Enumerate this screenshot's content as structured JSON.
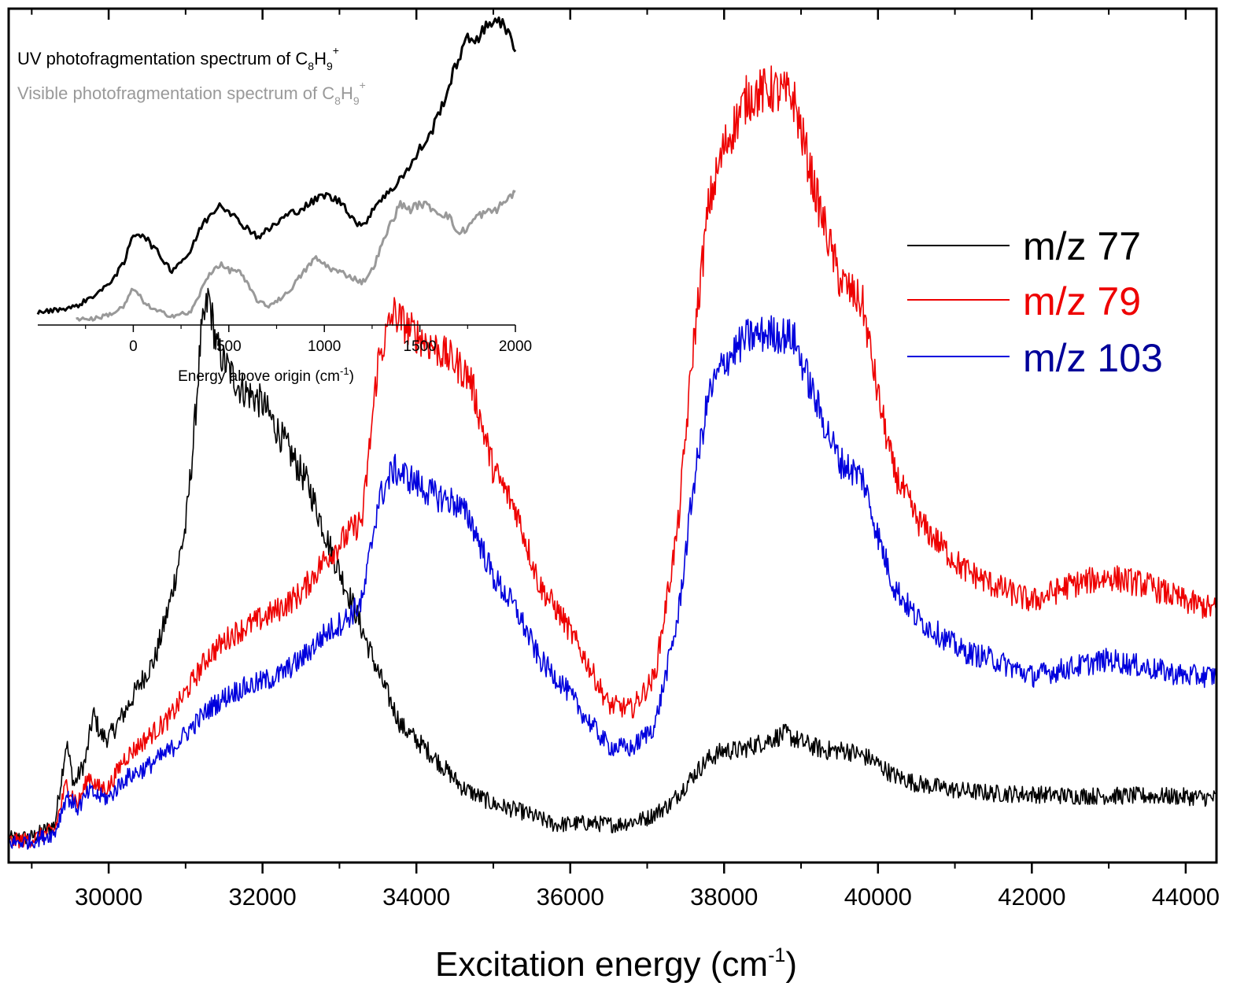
{
  "chart_data": [
    {
      "type": "line",
      "title": "",
      "xlabel": "Excitation energy",
      "xlabel_unit": "(cm",
      "xlabel_unit_sup": "-1",
      "xlabel_unit_close": ")",
      "ylabel": "",
      "xlim": [
        28700,
        44400
      ],
      "ylim": [
        0,
        1
      ],
      "y_ticks_shown": false,
      "grid": false,
      "legend_position": "right",
      "x_tick_labels": [
        "30000",
        "32000",
        "34000",
        "36000",
        "38000",
        "40000",
        "42000",
        "44000"
      ],
      "x_ticks": [
        30000,
        32000,
        34000,
        36000,
        38000,
        40000,
        42000,
        44000
      ],
      "series": [
        {
          "name": "m/z 77",
          "color": "#000000",
          "x": [
            28700,
            29000,
            29300,
            29450,
            29550,
            29700,
            29800,
            29900,
            30000,
            30200,
            30400,
            30600,
            30800,
            31000,
            31100,
            31200,
            31300,
            31400,
            31500,
            31700,
            32000,
            32300,
            32600,
            32900,
            33200,
            33500,
            33800,
            34200,
            34600,
            35000,
            35400,
            35800,
            36200,
            36600,
            37000,
            37300,
            37600,
            37800,
            38000,
            38200,
            38500,
            38800,
            39000,
            39300,
            39600,
            39900,
            40200,
            40500,
            41000,
            41500,
            42000,
            42500,
            43000,
            43500,
            44000,
            44400
          ],
          "y": [
            0.023,
            0.025,
            0.04,
            0.14,
            0.088,
            0.118,
            0.175,
            0.148,
            0.145,
            0.175,
            0.21,
            0.24,
            0.31,
            0.4,
            0.5,
            0.63,
            0.68,
            0.62,
            0.6,
            0.57,
            0.55,
            0.5,
            0.45,
            0.37,
            0.3,
            0.225,
            0.16,
            0.125,
            0.085,
            0.065,
            0.055,
            0.04,
            0.042,
            0.04,
            0.048,
            0.065,
            0.1,
            0.12,
            0.13,
            0.13,
            0.14,
            0.15,
            0.14,
            0.13,
            0.13,
            0.12,
            0.1,
            0.09,
            0.082,
            0.078,
            0.077,
            0.075,
            0.075,
            0.075,
            0.074,
            0.072
          ]
        },
        {
          "name": "m/z 79",
          "color": "#ee0000",
          "x": [
            28700,
            29000,
            29300,
            29450,
            29600,
            29750,
            29850,
            30000,
            30200,
            30500,
            30800,
            31000,
            31300,
            31600,
            31900,
            32200,
            32500,
            32800,
            33100,
            33300,
            33500,
            33700,
            33900,
            34200,
            34500,
            34700,
            35000,
            35300,
            35600,
            35900,
            36200,
            36500,
            36800,
            37100,
            37400,
            37600,
            37800,
            38000,
            38300,
            38600,
            38900,
            39200,
            39500,
            39800,
            40000,
            40200,
            40500,
            40800,
            41100,
            41500,
            42000,
            42500,
            43000,
            43500,
            44000,
            44400
          ],
          "y": [
            0.02,
            0.022,
            0.034,
            0.09,
            0.065,
            0.1,
            0.085,
            0.085,
            0.12,
            0.145,
            0.17,
            0.2,
            0.245,
            0.27,
            0.285,
            0.3,
            0.32,
            0.36,
            0.39,
            0.41,
            0.6,
            0.66,
            0.64,
            0.62,
            0.6,
            0.58,
            0.47,
            0.42,
            0.33,
            0.29,
            0.24,
            0.185,
            0.18,
            0.22,
            0.4,
            0.62,
            0.79,
            0.86,
            0.92,
            0.93,
            0.92,
            0.8,
            0.7,
            0.67,
            0.56,
            0.47,
            0.41,
            0.38,
            0.35,
            0.33,
            0.31,
            0.33,
            0.34,
            0.33,
            0.31,
            0.3
          ]
        },
        {
          "name": "m/z 103",
          "color": "#0000dd",
          "x": [
            28700,
            29000,
            29300,
            29450,
            29600,
            29750,
            29850,
            30000,
            30200,
            30500,
            30800,
            31000,
            31300,
            31600,
            31900,
            32200,
            32500,
            32800,
            33100,
            33300,
            33500,
            33700,
            33900,
            34200,
            34500,
            34700,
            35000,
            35300,
            35600,
            35900,
            36200,
            36500,
            36800,
            37100,
            37400,
            37600,
            37800,
            38000,
            38300,
            38600,
            38900,
            39200,
            39500,
            39800,
            40000,
            40200,
            40500,
            40800,
            41100,
            41500,
            42000,
            42500,
            43000,
            43500,
            44000,
            44400
          ],
          "y": [
            0.018,
            0.02,
            0.03,
            0.075,
            0.06,
            0.08,
            0.075,
            0.072,
            0.095,
            0.11,
            0.13,
            0.15,
            0.18,
            0.2,
            0.21,
            0.22,
            0.24,
            0.27,
            0.29,
            0.31,
            0.43,
            0.47,
            0.46,
            0.44,
            0.43,
            0.41,
            0.34,
            0.3,
            0.24,
            0.21,
            0.17,
            0.135,
            0.132,
            0.16,
            0.29,
            0.45,
            0.56,
            0.6,
            0.63,
            0.635,
            0.63,
            0.55,
            0.48,
            0.46,
            0.39,
            0.33,
            0.29,
            0.27,
            0.25,
            0.24,
            0.22,
            0.23,
            0.24,
            0.23,
            0.22,
            0.22
          ]
        }
      ]
    },
    {
      "type": "line",
      "title": "",
      "xlabel": "Energy above origin",
      "xlabel_unit": "(cm",
      "xlabel_unit_sup": "-1",
      "xlabel_unit_close": ")",
      "xlim": [
        -500,
        2000
      ],
      "ylim": [
        0,
        1
      ],
      "grid": false,
      "legend_position": "top-left",
      "x_tick_labels": [
        "0",
        "500",
        "1000",
        "1500",
        "2000"
      ],
      "x_ticks": [
        0,
        500,
        1000,
        1500,
        2000
      ],
      "series": [
        {
          "name": "UV photofragmentation spectrum of C",
          "name_sub1": "8",
          "name_mid": "H",
          "name_sub2": "9",
          "name_sup": "+",
          "color": "#000000",
          "x": [
            -500,
            -300,
            -150,
            -50,
            0,
            50,
            100,
            200,
            300,
            350,
            400,
            450,
            500,
            550,
            600,
            650,
            700,
            800,
            900,
            1000,
            1100,
            1150,
            1200,
            1250,
            1300,
            1350,
            1400,
            1450,
            1500,
            1550,
            1600,
            1650,
            1700,
            1750,
            1800,
            1850,
            1900,
            1950,
            2000
          ],
          "y": [
            0.02,
            0.04,
            0.1,
            0.18,
            0.28,
            0.28,
            0.24,
            0.16,
            0.22,
            0.3,
            0.34,
            0.38,
            0.36,
            0.32,
            0.3,
            0.27,
            0.29,
            0.34,
            0.37,
            0.41,
            0.38,
            0.33,
            0.3,
            0.36,
            0.4,
            0.42,
            0.47,
            0.5,
            0.56,
            0.6,
            0.68,
            0.76,
            0.86,
            0.92,
            0.93,
            0.96,
            1.0,
            0.95,
            0.9
          ]
        },
        {
          "name": "Visible photofragmentation spectrum of C",
          "name_sub1": "8",
          "name_mid": "H",
          "name_sub2": "9",
          "name_sup": "+",
          "color": "#999999",
          "x": [
            -300,
            -200,
            -100,
            -50,
            0,
            50,
            100,
            200,
            300,
            400,
            450,
            500,
            550,
            600,
            650,
            700,
            800,
            900,
            950,
            1000,
            1050,
            1100,
            1200,
            1250,
            1300,
            1350,
            1400,
            1450,
            1500,
            1550,
            1600,
            1650,
            1700,
            1750,
            1800,
            1900,
            2000
          ],
          "y": [
            0.0,
            0.0,
            0.02,
            0.04,
            0.1,
            0.06,
            0.03,
            0.01,
            0.02,
            0.15,
            0.18,
            0.16,
            0.16,
            0.11,
            0.06,
            0.04,
            0.08,
            0.16,
            0.2,
            0.18,
            0.16,
            0.15,
            0.12,
            0.16,
            0.24,
            0.32,
            0.38,
            0.36,
            0.38,
            0.37,
            0.35,
            0.34,
            0.28,
            0.3,
            0.34,
            0.36,
            0.42
          ]
        }
      ]
    }
  ]
}
